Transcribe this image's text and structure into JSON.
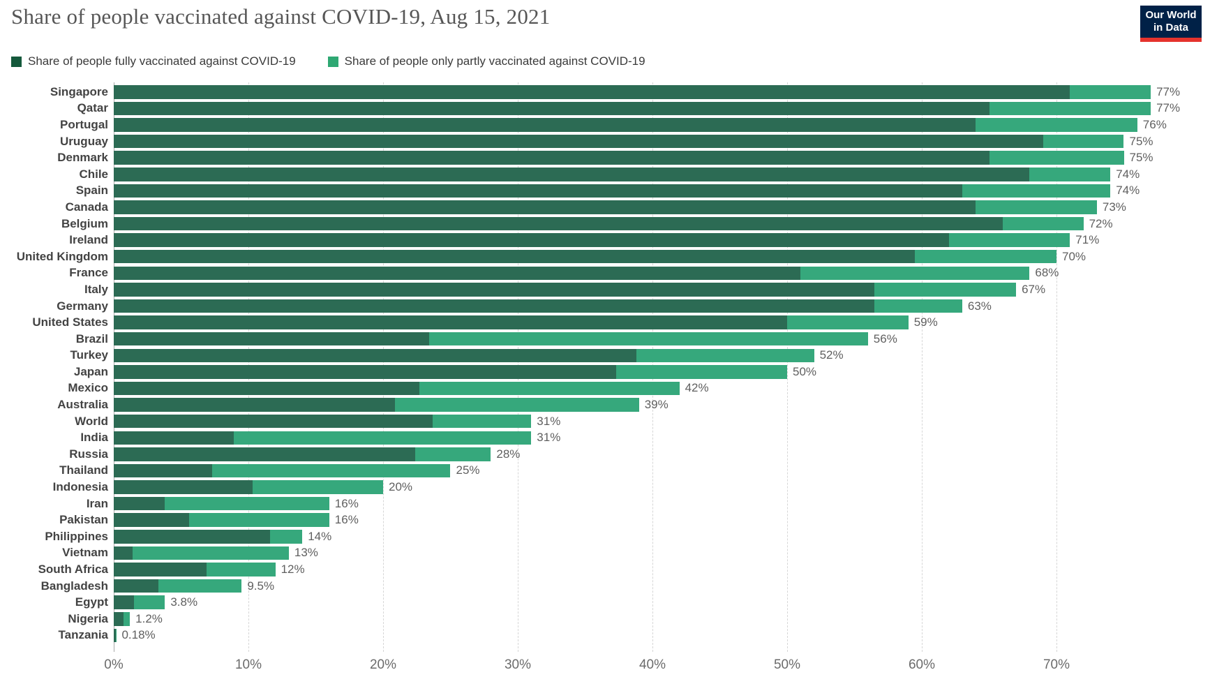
{
  "title": "Share of people vaccinated against COVID-19, Aug 15, 2021",
  "logo": {
    "line1": "Our World",
    "line2": "in Data",
    "bg": "#002147",
    "accent": "#e5332d"
  },
  "legend": [
    {
      "label": "Share of people fully vaccinated against COVID-19",
      "color": "#15593c"
    },
    {
      "label": "Share of people only partly vaccinated against COVID-19",
      "color": "#2fa873"
    }
  ],
  "colors": {
    "fully_bar": "#2c6b54",
    "partly_bar": "#36a87c",
    "grid": "#d6d6d6",
    "axis_line": "#a8a8a8",
    "axis_text": "#6b6b6b",
    "value_text": "#5f5f5f",
    "country_text": "#434343",
    "title_text": "#565656"
  },
  "chart_data": {
    "type": "bar",
    "orientation": "horizontal",
    "stacked": true,
    "title": "Share of people vaccinated against COVID-19, Aug 15, 2021",
    "categories": [
      "Singapore",
      "Qatar",
      "Portugal",
      "Uruguay",
      "Denmark",
      "Chile",
      "Spain",
      "Canada",
      "Belgium",
      "Ireland",
      "United Kingdom",
      "France",
      "Italy",
      "Germany",
      "United States",
      "Brazil",
      "Turkey",
      "Japan",
      "Mexico",
      "Australia",
      "World",
      "India",
      "Russia",
      "Thailand",
      "Indonesia",
      "Iran",
      "Pakistan",
      "Philippines",
      "Vietnam",
      "South Africa",
      "Bangladesh",
      "Egypt",
      "Nigeria",
      "Tanzania"
    ],
    "series": [
      {
        "name": "Share of people fully vaccinated against COVID-19",
        "values": [
          71,
          65,
          64,
          69,
          65,
          68,
          63,
          64,
          66,
          62,
          59.5,
          51,
          56.5,
          56.5,
          50,
          23.4,
          38.8,
          37.3,
          22.7,
          20.9,
          23.7,
          8.9,
          22.4,
          7.3,
          10.3,
          3.8,
          5.6,
          11.6,
          1.4,
          6.9,
          3.3,
          1.5,
          0.7,
          0.15
        ]
      },
      {
        "name": "Share of people only partly vaccinated against COVID-19",
        "values": [
          6,
          12,
          12,
          6,
          10,
          6,
          11,
          9,
          6,
          9,
          10.5,
          17,
          10.5,
          6.5,
          9,
          32.6,
          13.2,
          12.7,
          19.3,
          18.1,
          7.3,
          22.1,
          5.6,
          17.7,
          9.7,
          12.2,
          10.4,
          2.4,
          11.6,
          5.1,
          6.2,
          2.3,
          0.5,
          0.03
        ]
      }
    ],
    "total_labels": [
      "77%",
      "77%",
      "76%",
      "75%",
      "75%",
      "74%",
      "74%",
      "73%",
      "72%",
      "71%",
      "70%",
      "68%",
      "67%",
      "63%",
      "59%",
      "56%",
      "52%",
      "50%",
      "42%",
      "39%",
      "31%",
      "31%",
      "28%",
      "25%",
      "20%",
      "16%",
      "16%",
      "14%",
      "13%",
      "12%",
      "9.5%",
      "3.8%",
      "1.2%",
      "0.18%"
    ],
    "x_ticks": [
      {
        "value": 0,
        "label": "0%"
      },
      {
        "value": 10,
        "label": "10%"
      },
      {
        "value": 20,
        "label": "20%"
      },
      {
        "value": 30,
        "label": "30%"
      },
      {
        "value": 40,
        "label": "40%"
      },
      {
        "value": 50,
        "label": "50%"
      },
      {
        "value": 60,
        "label": "60%"
      },
      {
        "value": 70,
        "label": "70%"
      }
    ],
    "xlim": [
      0,
      78
    ],
    "grid": true,
    "legend_position": "top"
  }
}
